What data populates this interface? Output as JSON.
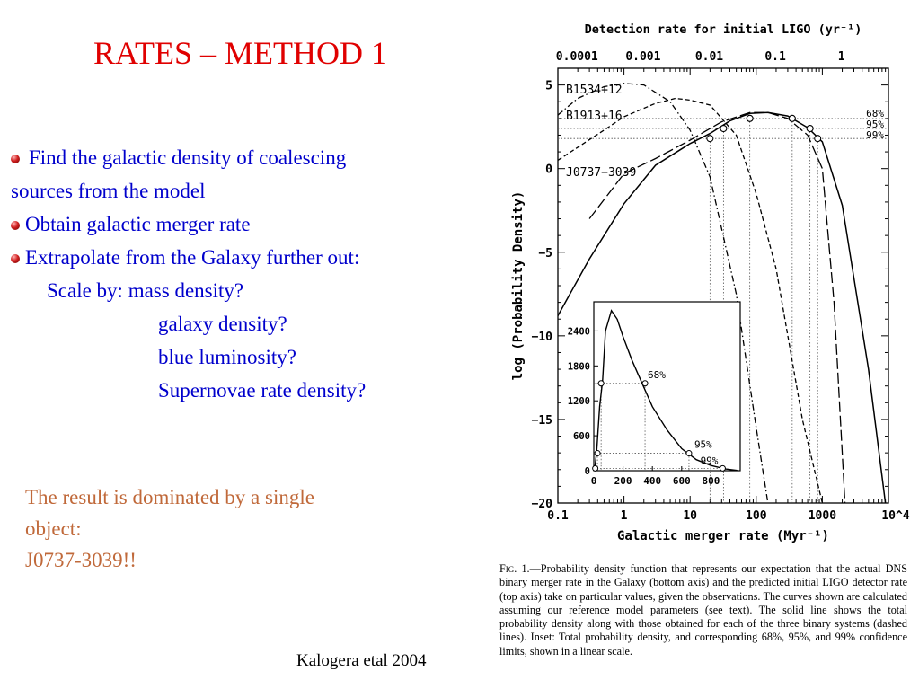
{
  "slide": {
    "title": "RATES – METHOD 1",
    "bullets": [
      {
        "text": " Find the galactic density of coalescing",
        "cont": "sources from the model"
      },
      {
        "text": "Obtain galactic merger rate"
      },
      {
        "text": "Extrapolate from the Galaxy further out:"
      }
    ],
    "scale_label": "Scale by: mass density?",
    "scale_items": [
      "galaxy density?",
      "blue luminosity?",
      "Supernovae rate density?"
    ],
    "result_lines": [
      "The result is dominated by  a single",
      "object:",
      "J0737-3039!!"
    ],
    "credit": "Kalogera etal 2004"
  },
  "colors": {
    "title": "#e00000",
    "bullets": "#0000cc",
    "result": "#c0693a"
  },
  "chart_data": [
    {
      "type": "line",
      "title": "",
      "top_axis_label": "Detection rate for initial LIGO (yr^-1)",
      "top_ticks": [
        "0.0001",
        "0.001",
        "0.01",
        "0.1",
        "1"
      ],
      "xlabel": "Galactic merger rate (Myr^-1)",
      "ylabel": "log (Probability Density)",
      "x_scale": "log",
      "xlim": [
        0.1,
        10000
      ],
      "ylim": [
        -20,
        6
      ],
      "x_ticks": [
        "0.1",
        "1",
        "10",
        "100",
        "1000",
        "10^4"
      ],
      "y_ticks": [
        "5",
        "0",
        "−5",
        "−10",
        "−15",
        "−20"
      ],
      "series": [
        {
          "name": "B1534+12",
          "style": "dash-dot",
          "x": [
            0.1,
            0.2,
            0.5,
            1,
            2,
            5,
            10,
            20,
            50,
            100,
            150
          ],
          "y": [
            3.2,
            4.2,
            4.9,
            5.1,
            5.0,
            4.0,
            2.3,
            -0.5,
            -7.5,
            -15.5,
            -20
          ]
        },
        {
          "name": "B1913+16",
          "style": "dashed",
          "x": [
            0.1,
            0.5,
            1,
            3,
            6,
            10,
            20,
            50,
            100,
            200,
            500,
            1000
          ],
          "y": [
            0.5,
            2.3,
            3.1,
            3.9,
            4.2,
            4.1,
            3.8,
            2.0,
            -1.5,
            -6,
            -15,
            -20
          ]
        },
        {
          "name": "J0737−3039",
          "style": "long-dash",
          "x": [
            0.3,
            1,
            3,
            10,
            30,
            80,
            150,
            300,
            600,
            1000,
            1500,
            2200
          ],
          "y": [
            -3,
            -0.3,
            0.6,
            1.7,
            2.8,
            3.35,
            3.35,
            3.0,
            2.0,
            0.0,
            -8,
            -20
          ]
        },
        {
          "name": "Total",
          "style": "solid",
          "x": [
            0.1,
            0.3,
            1,
            3,
            10,
            20,
            40,
            80,
            150,
            300,
            600,
            1000,
            2000,
            5000,
            9000
          ],
          "y": [
            -8.8,
            -5.4,
            -2.1,
            0.2,
            1.5,
            2.1,
            2.85,
            3.3,
            3.35,
            3.15,
            2.45,
            1.6,
            -2.2,
            -12,
            -20
          ]
        }
      ],
      "confidence_labels": [
        "68%",
        "95%",
        "99%"
      ],
      "confidence_levels_log_density": [
        3.0,
        2.4,
        1.8
      ],
      "confidence_points": [
        {
          "label": "68%",
          "x": [
            80,
            350
          ]
        },
        {
          "label": "95%",
          "x": [
            32,
            650
          ]
        },
        {
          "label": "99%",
          "x": [
            20,
            850
          ]
        }
      ]
    },
    {
      "type": "line",
      "title": "Inset",
      "x_ticks": [
        "0",
        "200",
        "400",
        "600",
        "800"
      ],
      "y_ticks": [
        "0",
        "600",
        "1200",
        "1800",
        "2400"
      ],
      "xlim": [
        0,
        1000
      ],
      "ylim": [
        0,
        2900
      ],
      "series": [
        {
          "name": "Total",
          "x": [
            5,
            20,
            40,
            60,
            80,
            120,
            160,
            200,
            260,
            330,
            400,
            500,
            600,
            700,
            800,
            900,
            980
          ],
          "y": [
            0,
            350,
            1100,
            1550,
            2400,
            2750,
            2600,
            2300,
            1900,
            1500,
            1100,
            700,
            380,
            190,
            90,
            30,
            5
          ]
        }
      ],
      "annotations": [
        {
          "label": "68%",
          "x": [
            50,
            350
          ],
          "y": 1500
        },
        {
          "label": "95%",
          "x": [
            25,
            650
          ],
          "y": 300
        },
        {
          "label": "99%",
          "x": [
            10,
            880
          ],
          "y": 40
        }
      ]
    }
  ],
  "figure_caption": {
    "prefix": "Fig. 1.",
    "text": "—Probability density function that represents our expectation that the actual DNS binary merger rate in the Galaxy (bottom axis) and the predicted initial LIGO detector rate (top axis) take on particular values, given the observations. The curves shown are calculated assuming our reference model parameters (see text). The solid line shows the total probability density along with those obtained for each of the three binary systems (dashed lines). Inset: Total probability density, and corresponding 68%, 95%, and 99% confidence limits, shown in a linear scale."
  }
}
